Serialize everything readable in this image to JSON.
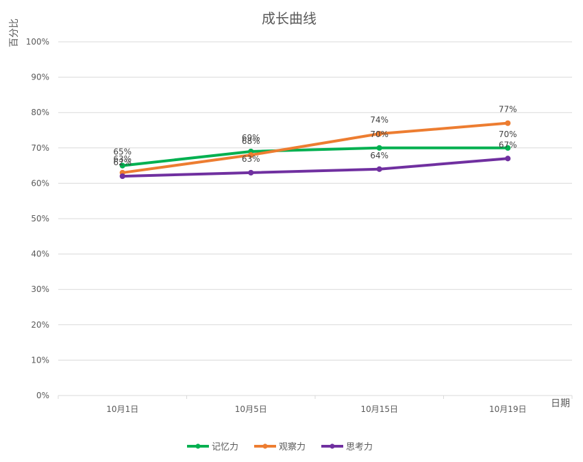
{
  "chart_data": {
    "type": "line",
    "title": "成长曲线",
    "xlabel": "日期",
    "ylabel": "百分比",
    "categories": [
      "10月1日",
      "10月5日",
      "10月15日",
      "10月19日"
    ],
    "ylim": [
      0,
      100
    ],
    "yticks": [
      0,
      10,
      20,
      30,
      40,
      50,
      60,
      70,
      80,
      90,
      100
    ],
    "ytick_labels": [
      "0%",
      "10%",
      "20%",
      "30%",
      "40%",
      "50%",
      "60%",
      "70%",
      "80%",
      "90%",
      "100%"
    ],
    "grid": true,
    "legend_position": "bottom",
    "series": [
      {
        "name": "记忆力",
        "color": "#00b050",
        "values": [
          65,
          69,
          70,
          70
        ],
        "labels": [
          "65%",
          "69%",
          "70%",
          "70%"
        ]
      },
      {
        "name": "观察力",
        "color": "#ed7d31",
        "values": [
          63,
          68,
          74,
          77
        ],
        "labels": [
          "63%",
          "68%",
          "74%",
          "77%"
        ]
      },
      {
        "name": "思考力",
        "color": "#7030a0",
        "values": [
          62,
          63,
          64,
          67
        ],
        "labels": [
          "62%",
          "63%",
          "64%",
          "67%"
        ]
      }
    ]
  }
}
